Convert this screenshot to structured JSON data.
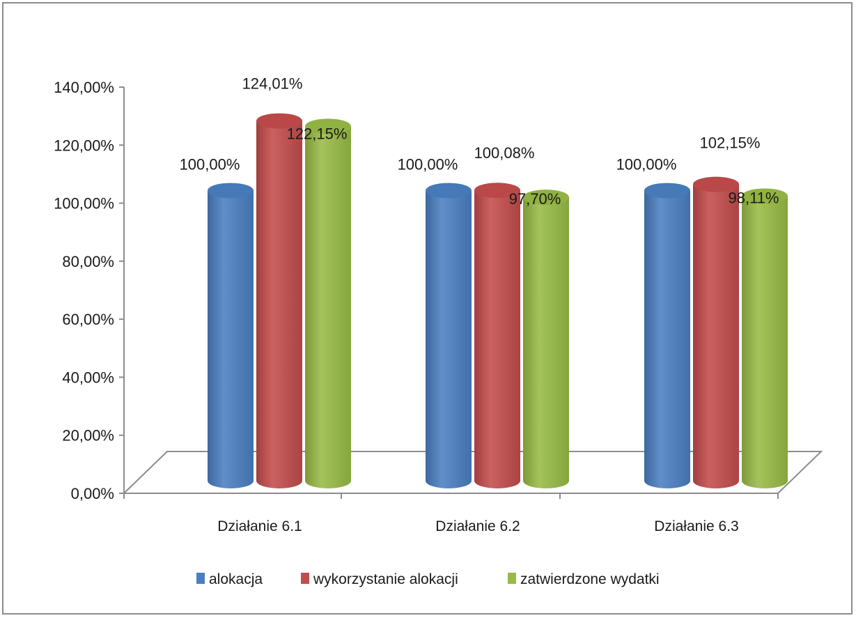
{
  "chart_data": {
    "type": "bar",
    "style": "3d-cylinder",
    "categories": [
      "Działanie 6.1",
      "Działanie 6.2",
      "Działanie 6.3"
    ],
    "series": [
      {
        "name": "alokacja",
        "color": "#4a7fc1",
        "values": [
          100.0,
          100.0,
          100.0
        ],
        "labels": [
          "100,00%",
          "100,00%",
          "100,00%"
        ]
      },
      {
        "name": "wykorzystanie alokacji",
        "color": "#c44c4c",
        "values": [
          124.01,
          100.08,
          102.15
        ],
        "labels": [
          "124,01%",
          "100,08%",
          "102,15%"
        ]
      },
      {
        "name": "zatwierdzone wydatki",
        "color": "#98bb45",
        "values": [
          122.15,
          97.7,
          98.11
        ],
        "labels": [
          "122,15%",
          "97,70%",
          "98,11%"
        ]
      }
    ],
    "ylim": [
      0,
      140
    ],
    "yticks": [
      "0,00%",
      "20,00%",
      "40,00%",
      "60,00%",
      "80,00%",
      "100,00%",
      "120,00%",
      "140,00%"
    ],
    "legend_position": "bottom",
    "grid": false
  }
}
